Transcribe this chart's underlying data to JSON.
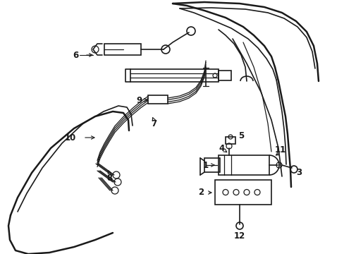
{
  "bg_color": "#ffffff",
  "line_color": "#1a1a1a",
  "lw_heavy": 1.8,
  "lw_med": 1.2,
  "lw_light": 0.9,
  "label_fontsize": 8.5,
  "figsize": [
    4.89,
    3.6
  ],
  "dpi": 100
}
